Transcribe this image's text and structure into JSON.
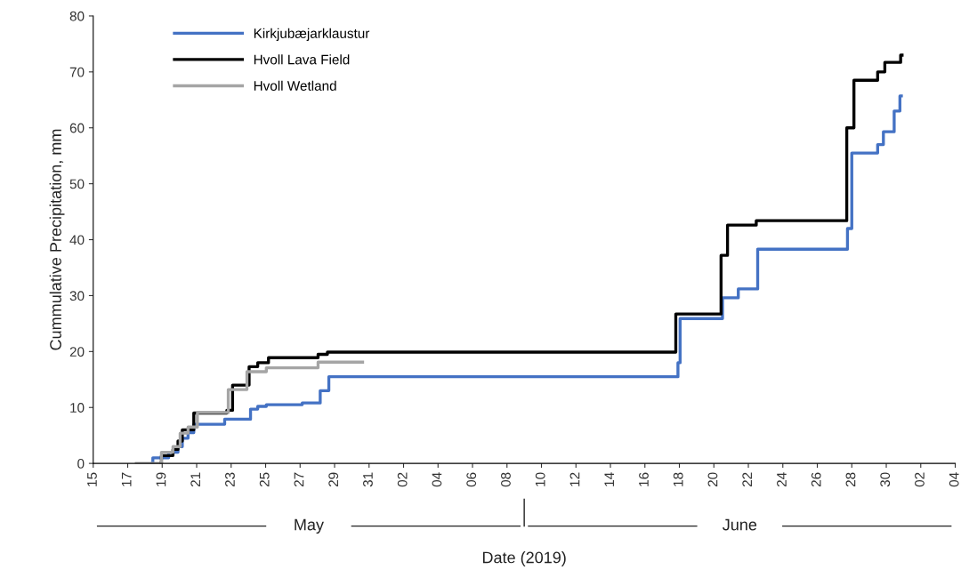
{
  "chart_data": {
    "type": "step",
    "xlabel": "Date (2019)",
    "ylabel": "Cummulative Precipitation, mm",
    "annotations": [
      "May",
      "June"
    ],
    "xlim": [
      "2019-05-15",
      "2019-07-04"
    ],
    "xticks": [
      {
        "value": "2019-05-15",
        "label": "15"
      },
      {
        "value": "2019-05-17",
        "label": "17"
      },
      {
        "value": "2019-05-19",
        "label": "19"
      },
      {
        "value": "2019-05-21",
        "label": "21"
      },
      {
        "value": "2019-05-23",
        "label": "23"
      },
      {
        "value": "2019-05-25",
        "label": "25"
      },
      {
        "value": "2019-05-27",
        "label": "27"
      },
      {
        "value": "2019-05-29",
        "label": "29"
      },
      {
        "value": "2019-05-31",
        "label": "31"
      },
      {
        "value": "2019-06-02",
        "label": "02"
      },
      {
        "value": "2019-06-04",
        "label": "04"
      },
      {
        "value": "2019-06-06",
        "label": "06"
      },
      {
        "value": "2019-06-08",
        "label": "08"
      },
      {
        "value": "2019-06-10",
        "label": "10"
      },
      {
        "value": "2019-06-12",
        "label": "12"
      },
      {
        "value": "2019-06-14",
        "label": "14"
      },
      {
        "value": "2019-06-16",
        "label": "16"
      },
      {
        "value": "2019-06-18",
        "label": "18"
      },
      {
        "value": "2019-06-20",
        "label": "20"
      },
      {
        "value": "2019-06-22",
        "label": "22"
      },
      {
        "value": "2019-06-24",
        "label": "24"
      },
      {
        "value": "2019-06-26",
        "label": "26"
      },
      {
        "value": "2019-06-28",
        "label": "28"
      },
      {
        "value": "2019-06-30",
        "label": "30"
      },
      {
        "value": "2019-07-02",
        "label": "02"
      },
      {
        "value": "2019-07-04",
        "label": "04"
      }
    ],
    "ylim": [
      0,
      80
    ],
    "yticks": [
      0,
      10,
      20,
      30,
      40,
      50,
      60,
      70,
      80
    ],
    "grid": false,
    "legend": "top left",
    "marker": "none",
    "line_style": "solid",
    "series": [
      {
        "name": "Kirkjubæjarklaustur",
        "color": "#4472c4",
        "x": [
          "2019-05-18T10:00",
          "2019-05-18T11:00",
          "2019-05-19T09:00",
          "2019-05-19T22:00",
          "2019-05-20T04:00",
          "2019-05-20T12:00",
          "2019-05-20T20:00",
          "2019-05-22T15:00",
          "2019-05-24T03:00",
          "2019-05-24T13:00",
          "2019-05-25T01:00",
          "2019-05-27T03:00",
          "2019-05-28T04:00",
          "2019-05-28T16:00",
          "2019-06-17T22:00",
          "2019-06-18T01:00",
          "2019-06-20T12:00",
          "2019-06-21T10:00",
          "2019-06-22T13:00",
          "2019-06-27T18:00",
          "2019-06-28T00:00",
          "2019-06-29T12:00",
          "2019-06-29T20:00",
          "2019-06-30T11:00",
          "2019-06-30T19:00",
          "2019-06-30T21:00"
        ],
        "values": [
          0,
          1.0,
          2.0,
          3.0,
          4.5,
          5.5,
          7.0,
          7.9,
          9.7,
          10.2,
          10.5,
          10.8,
          13.0,
          15.5,
          18.0,
          25.9,
          29.6,
          31.2,
          38.3,
          42.0,
          55.5,
          57.0,
          59.3,
          63.0,
          65.7,
          65.7
        ]
      },
      {
        "name": "Hvoll Lava Field",
        "color": "#000000",
        "x": [
          "2019-05-18T22:00",
          "2019-05-18T23:00",
          "2019-05-19T15:00",
          "2019-05-19T22:00",
          "2019-05-20T04:00",
          "2019-05-20T20:00",
          "2019-05-22T18:00",
          "2019-05-23T02:00",
          "2019-05-24T01:00",
          "2019-05-24T13:00",
          "2019-05-25T04:00",
          "2019-05-28T01:00",
          "2019-05-28T14:00",
          "2019-06-17T19:00",
          "2019-06-20T10:00",
          "2019-06-20T19:00",
          "2019-06-22T11:00",
          "2019-06-27T17:00",
          "2019-06-28T03:00",
          "2019-06-29T12:00",
          "2019-06-29T22:00",
          "2019-06-30T20:00",
          "2019-06-30T22:00"
        ],
        "values": [
          0,
          1.4,
          2.5,
          4.0,
          6.0,
          9.0,
          9.5,
          14.0,
          17.3,
          18.0,
          18.9,
          19.5,
          19.9,
          26.7,
          37.2,
          42.6,
          43.4,
          60.0,
          68.5,
          70.0,
          71.7,
          73.0,
          73.0
        ]
      },
      {
        "name": "Hvoll Wetland",
        "color": "#a5a5a5",
        "x": [
          "2019-05-17T12:00",
          "2019-05-18T23:00",
          "2019-05-19T15:00",
          "2019-05-20T01:00",
          "2019-05-20T12:00",
          "2019-05-21T01:00",
          "2019-05-22T20:00",
          "2019-05-23T22:00",
          "2019-05-25T01:00",
          "2019-05-28T01:00",
          "2019-05-30T15:00"
        ],
        "values": [
          0,
          2.0,
          3.0,
          5.4,
          6.5,
          9.1,
          13.2,
          16.4,
          17.1,
          18.1,
          18.1
        ]
      }
    ]
  }
}
